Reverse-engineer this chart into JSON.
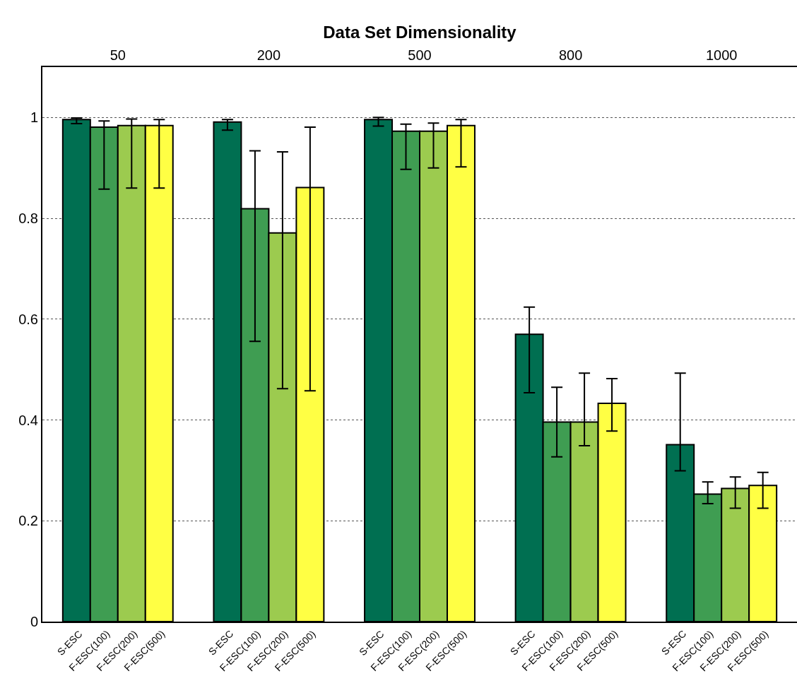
{
  "chart_data": {
    "type": "bar",
    "xlabel": "Data Set Dimensionality",
    "categories": [
      "50",
      "200",
      "500",
      "800",
      "1000"
    ],
    "series": [
      {
        "name": "S-ESC",
        "color": "#006f51",
        "values": [
          0.996,
          0.991,
          0.996,
          0.57,
          0.351
        ],
        "errors": [
          [
            0.988,
            0.999
          ],
          [
            0.975,
            0.996
          ],
          [
            0.983,
            1.0
          ],
          [
            0.454,
            0.624
          ],
          [
            0.299,
            0.493
          ]
        ]
      },
      {
        "name": "F-ESC(100)",
        "color": "#3f9d52",
        "values": [
          0.981,
          0.819,
          0.973,
          0.396,
          0.253
        ],
        "errors": [
          [
            0.858,
            0.993
          ],
          [
            0.556,
            0.934
          ],
          [
            0.897,
            0.987
          ],
          [
            0.327,
            0.465
          ],
          [
            0.234,
            0.277
          ]
        ]
      },
      {
        "name": "F-ESC(200)",
        "color": "#9ccb4f",
        "values": [
          0.984,
          0.771,
          0.973,
          0.396,
          0.264
        ],
        "errors": [
          [
            0.86,
            0.997
          ],
          [
            0.462,
            0.932
          ],
          [
            0.9,
            0.989
          ],
          [
            0.349,
            0.493
          ],
          [
            0.225,
            0.287
          ]
        ]
      },
      {
        "name": "F-ESC(500)",
        "color": "#ffff44",
        "values": [
          0.984,
          0.861,
          0.984,
          0.433,
          0.27
        ],
        "errors": [
          [
            0.86,
            0.996
          ],
          [
            0.458,
            0.981
          ],
          [
            0.902,
            0.996
          ],
          [
            0.378,
            0.482
          ],
          [
            0.225,
            0.296
          ]
        ]
      }
    ],
    "ylim": [
      0,
      1.1
    ],
    "yticks": [
      0,
      0.2,
      0.4,
      0.6,
      0.8,
      1
    ],
    "grid": "y",
    "legend": false
  }
}
